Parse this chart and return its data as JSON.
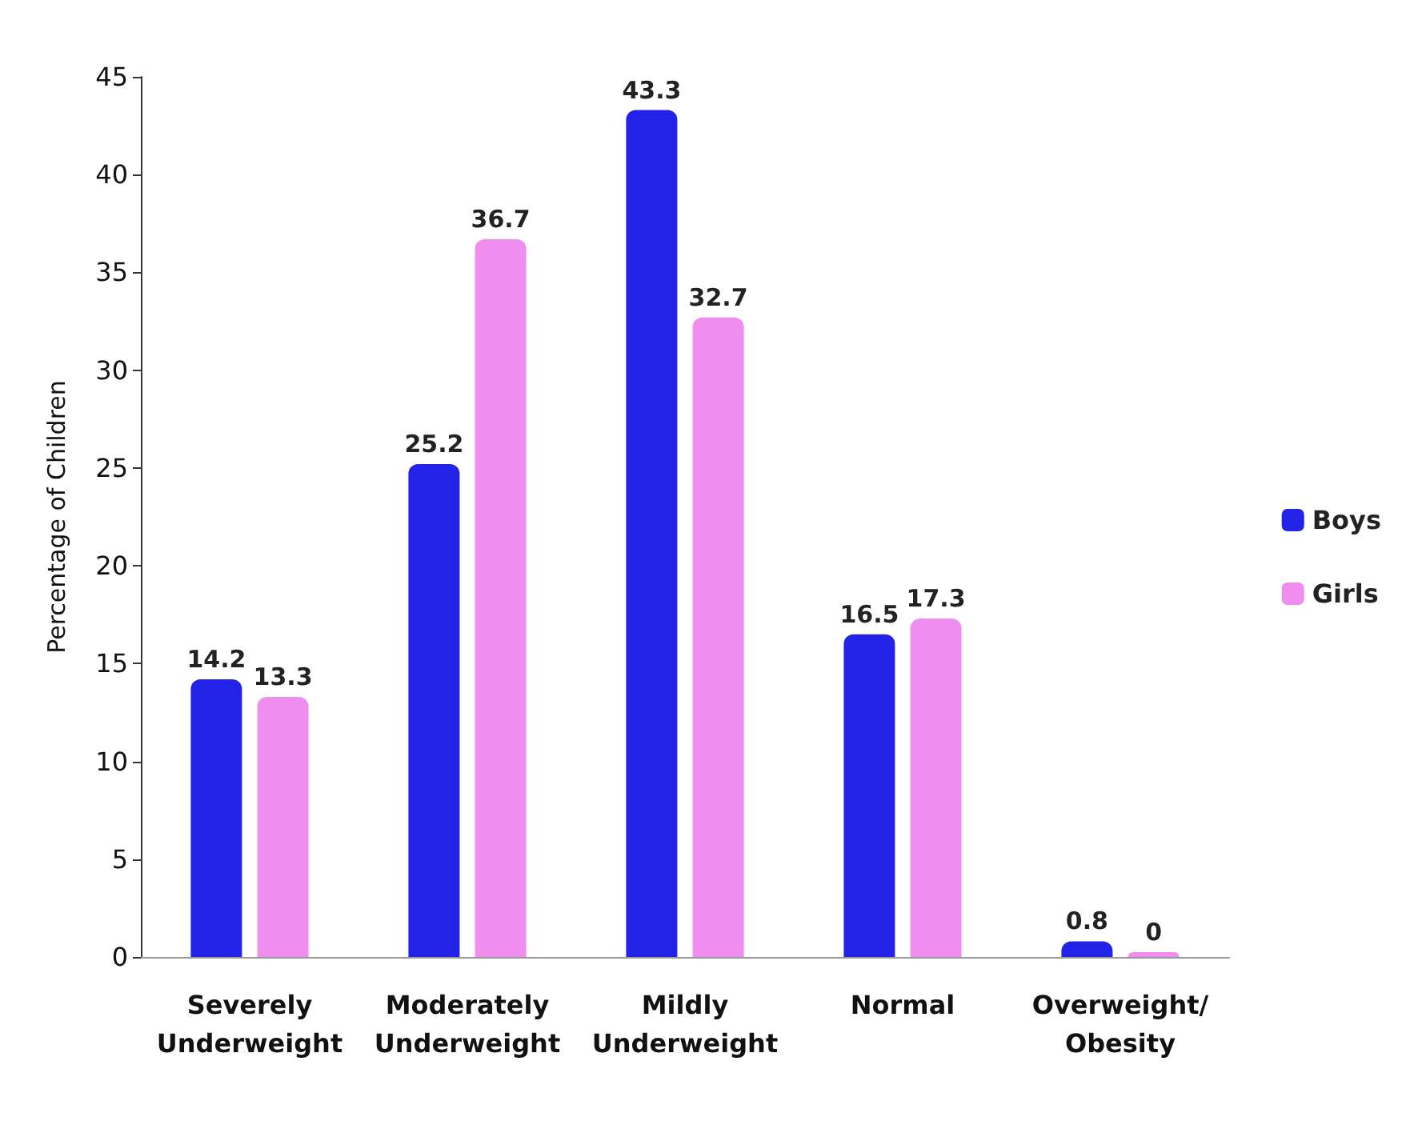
{
  "chart_data": {
    "type": "bar",
    "ylabel": "Percentage of Children",
    "categories": [
      "Severely Underweight",
      "Moderately Underweight",
      "Mildly Underweight",
      "Normal",
      "Overweight/ Obesity"
    ],
    "series": [
      {
        "name": "Boys",
        "color": "#2323e8",
        "values": [
          14.2,
          25.2,
          43.3,
          16.5,
          0.8
        ]
      },
      {
        "name": "Girls",
        "color": "#f08ef0",
        "values": [
          13.3,
          36.7,
          32.7,
          17.3,
          0
        ]
      }
    ],
    "ylim": [
      0,
      45
    ],
    "yticks": [
      0,
      5,
      10,
      15,
      20,
      25,
      30,
      35,
      40,
      45
    ],
    "grid": false,
    "legend": "right",
    "data_labels": true
  }
}
